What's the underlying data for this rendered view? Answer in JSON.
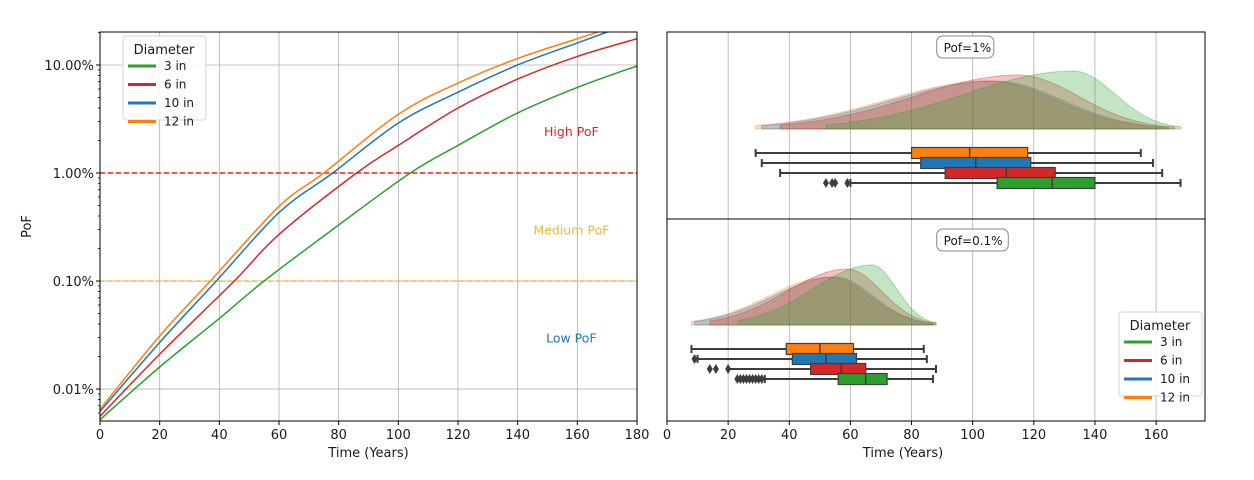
{
  "chart_data": [
    {
      "type": "line",
      "name": "pof-vs-time",
      "xlabel": "Time (Years)",
      "ylabel": "PoF",
      "xlim": [
        0,
        180
      ],
      "ylim": [
        0.00506,
        20.2
      ],
      "yscale": "log",
      "grid": true,
      "x_ticks": [
        0,
        20,
        40,
        60,
        80,
        100,
        120,
        140,
        160,
        180
      ],
      "y_ticks": [
        {
          "value": 0.01,
          "label": "0.01%"
        },
        {
          "value": 0.1,
          "label": "0.10%"
        },
        {
          "value": 1,
          "label": "1.00%"
        },
        {
          "value": 10,
          "label": "10.00%"
        }
      ],
      "legend": {
        "title": "Diameter",
        "position": "upper-left"
      },
      "series": [
        {
          "name": "3 in",
          "color": "#2ca02c",
          "x": [
            0,
            20,
            40,
            55,
            80,
            104,
            120,
            140,
            160,
            180
          ],
          "y": [
            0.0052,
            0.016,
            0.045,
            0.1,
            0.33,
            1.0,
            1.8,
            3.6,
            6.2,
            9.8
          ]
        },
        {
          "name": "6 in",
          "color": "#d62728",
          "x": [
            0,
            20,
            45,
            60,
            86,
            100,
            120,
            140,
            160,
            180
          ],
          "y": [
            0.0056,
            0.021,
            0.1,
            0.27,
            1.0,
            1.8,
            4.0,
            7.4,
            12.0,
            17.5
          ]
        },
        {
          "name": "10 in",
          "color": "#1f77b4",
          "x": [
            0,
            20,
            39,
            60,
            78,
            100,
            120,
            140,
            160,
            170
          ],
          "y": [
            0.0062,
            0.027,
            0.1,
            0.43,
            1.0,
            2.9,
            5.6,
            10.0,
            16.0,
            20.2
          ]
        },
        {
          "name": "12 in",
          "color": "#ff7f0e",
          "x": [
            0,
            20,
            37,
            60,
            75,
            100,
            120,
            140,
            160,
            167
          ],
          "y": [
            0.0065,
            0.031,
            0.1,
            0.49,
            1.0,
            3.5,
            6.8,
            11.5,
            17.5,
            20.2
          ]
        }
      ],
      "thresholds": [
        {
          "value": 1,
          "color": "#e8221f",
          "style": "dashed",
          "label": "High PoF",
          "label_color": "#d62728",
          "label_x": 158,
          "label_y": 2.2
        },
        {
          "value": 0.1,
          "color": "#f0b43c",
          "style": "dashed",
          "label": "Medium PoF",
          "label_color": "#f0b43c",
          "label_x": 158,
          "label_y": 0.27
        },
        {
          "value": null,
          "label": "Low PoF",
          "label_color": "#1f77b4",
          "label_x": 158,
          "label_y": 0.027
        }
      ]
    },
    {
      "type": "box",
      "name": "time-to-pof-1pct",
      "annotation": "Pof=1%",
      "xlim": [
        0,
        176
      ],
      "grid": true,
      "series": [
        {
          "name": "12 in",
          "color": "#ff7f0e",
          "whisker_low": 29,
          "q1": 80,
          "median": 99,
          "q3": 118,
          "whisker_high": 155,
          "outliers": [],
          "kde_range": [
            29,
            162
          ],
          "kde_peak": 105
        },
        {
          "name": "10 in",
          "color": "#1f77b4",
          "whisker_low": 31,
          "q1": 83,
          "median": 101,
          "q3": 119,
          "whisker_high": 159,
          "outliers": [],
          "kde_range": [
            31,
            164
          ],
          "kde_peak": 107
        },
        {
          "name": "6 in",
          "color": "#d62728",
          "whisker_low": 37,
          "q1": 91,
          "median": 111,
          "q3": 127,
          "whisker_high": 162,
          "outliers": [],
          "kde_range": [
            37,
            166
          ],
          "kde_peak": 115
        },
        {
          "name": "3 in",
          "color": "#2ca02c",
          "whisker_low": 60,
          "q1": 108,
          "median": 126,
          "q3": 140,
          "whisker_high": 168,
          "outliers": [
            52,
            54,
            55,
            59
          ],
          "kde_range": [
            52,
            168
          ],
          "kde_peak": 133
        }
      ]
    },
    {
      "type": "box",
      "name": "time-to-pof-0.1pct",
      "annotation": "Pof=0.1%",
      "xlabel": "Time (Years)",
      "xlim": [
        0,
        176
      ],
      "x_ticks": [
        0,
        20,
        40,
        60,
        80,
        100,
        120,
        140,
        160
      ],
      "grid": true,
      "legend": {
        "title": "Diameter",
        "position": "lower-right"
      },
      "series": [
        {
          "name": "12 in",
          "color": "#ff7f0e",
          "whisker_low": 8,
          "q1": 39,
          "median": 50,
          "q3": 61,
          "whisker_high": 84,
          "outliers": [],
          "kde_range": [
            8,
            87
          ],
          "kde_peak": 53
        },
        {
          "name": "10 in",
          "color": "#1f77b4",
          "whisker_low": 10,
          "q1": 41,
          "median": 52,
          "q3": 62,
          "whisker_high": 85,
          "outliers": [
            9
          ],
          "kde_range": [
            9,
            87
          ],
          "kde_peak": 55
        },
        {
          "name": "6 in",
          "color": "#d62728",
          "whisker_low": 20,
          "q1": 47,
          "median": 57,
          "q3": 65,
          "whisker_high": 88,
          "outliers": [
            14,
            16,
            20
          ],
          "kde_range": [
            14,
            88
          ],
          "kde_peak": 59
        },
        {
          "name": "3 in",
          "color": "#2ca02c",
          "whisker_low": 32,
          "q1": 56,
          "median": 65,
          "q3": 72,
          "whisker_high": 87,
          "outliers": [
            23,
            24,
            25,
            26,
            27,
            28,
            29,
            30,
            31
          ],
          "kde_range": [
            23,
            88
          ],
          "kde_peak": 67
        }
      ]
    }
  ],
  "legend_entries": [
    "3 in",
    "6 in",
    "10 in",
    "12 in"
  ],
  "legend_title": "Diameter"
}
